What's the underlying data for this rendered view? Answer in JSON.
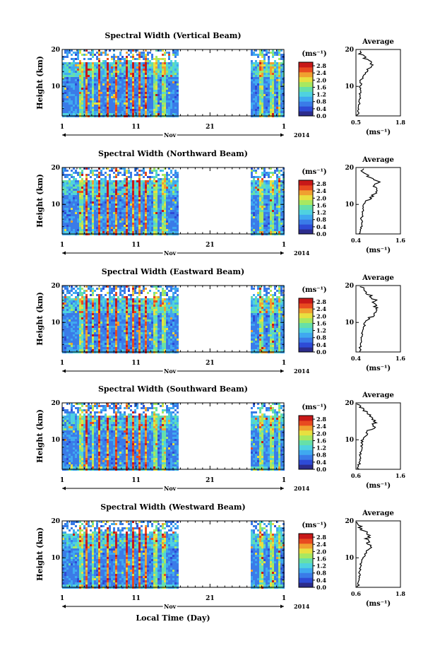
{
  "page": {
    "xaxis_label": "Local Time (Day)"
  },
  "shared": {
    "x_ticks": [
      "1",
      "11",
      "21",
      "1"
    ],
    "month_label": "Nov",
    "year_label": "2014",
    "y_ticks": [
      "20",
      "10"
    ],
    "ylabel": "Height (km)",
    "colorbar_unit": "(ms⁻¹)",
    "colorbar_ticks": [
      "0.0",
      "0.4",
      "0.8",
      "1.2",
      "1.6",
      "2.0",
      "2.4",
      "2.8"
    ],
    "colorbar_colors": [
      "#2c2c8c",
      "#2e4bd6",
      "#3a7be8",
      "#3fa9f0",
      "#4fd2e0",
      "#66e0a8",
      "#a8e860",
      "#e8e040",
      "#f0a030",
      "#e84a20",
      "#c81818"
    ],
    "avg_title": "Average",
    "avg_xlabel": "(ms⁻¹)",
    "no_data_gap_days": [
      16.5,
      26.5
    ]
  },
  "chart_data": [
    {
      "type": "heatmap",
      "title": "Spectral Width (Vertical Beam)",
      "xlim_days": [
        1,
        31
      ],
      "ylim_km": [
        2,
        20
      ],
      "average_profile": {
        "title": "Average",
        "xlim": [
          0.5,
          1.8
        ],
        "x_ticks": [
          "0.5",
          "1.8"
        ],
        "y_ticks": [
          "20",
          "10"
        ],
        "heights_km": [
          2,
          4,
          6,
          8,
          10,
          11,
          12,
          13,
          14,
          15,
          16,
          17,
          18,
          19,
          20
        ],
        "values": [
          0.55,
          0.58,
          0.6,
          0.62,
          0.62,
          0.65,
          0.68,
          0.75,
          0.82,
          0.9,
          0.98,
          0.85,
          0.72,
          0.62,
          0.58
        ]
      }
    },
    {
      "type": "heatmap",
      "title": "Spectral Width (Northward Beam)",
      "xlim_days": [
        1,
        31
      ],
      "ylim_km": [
        2,
        20
      ],
      "average_profile": {
        "title": "Average",
        "xlim": [
          0.4,
          1.6
        ],
        "x_ticks": [
          "0.4",
          "1.6"
        ],
        "y_ticks": [
          "20",
          "10"
        ],
        "heights_km": [
          2,
          4,
          6,
          8,
          10,
          11,
          12,
          13,
          14,
          15,
          16,
          17,
          18,
          19,
          20
        ],
        "values": [
          0.5,
          0.55,
          0.55,
          0.58,
          0.62,
          0.7,
          0.8,
          0.9,
          0.95,
          0.9,
          1.0,
          0.85,
          0.7,
          0.6,
          0.55
        ]
      }
    },
    {
      "type": "heatmap",
      "title": "Spectral Width (Eastward Beam)",
      "xlim_days": [
        1,
        31
      ],
      "ylim_km": [
        2,
        20
      ],
      "average_profile": {
        "title": "Average",
        "xlim": [
          0.4,
          1.6
        ],
        "x_ticks": [
          "0.4",
          "1.6"
        ],
        "y_ticks": [
          "20",
          "10"
        ],
        "heights_km": [
          2,
          4,
          6,
          8,
          10,
          11,
          12,
          13,
          14,
          15,
          16,
          17,
          18,
          19,
          20
        ],
        "values": [
          0.5,
          0.52,
          0.55,
          0.6,
          0.65,
          0.75,
          0.85,
          0.9,
          0.95,
          0.88,
          0.92,
          0.8,
          0.7,
          0.6,
          0.55
        ]
      }
    },
    {
      "type": "heatmap",
      "title": "Spectral Width (Southward Beam)",
      "xlim_days": [
        1,
        31
      ],
      "ylim_km": [
        2,
        20
      ],
      "average_profile": {
        "title": "Average",
        "xlim": [
          0.6,
          1.6
        ],
        "x_ticks": [
          "0.6",
          "1.6"
        ],
        "y_ticks": [
          "20",
          "10"
        ],
        "heights_km": [
          2,
          4,
          6,
          8,
          10,
          11,
          12,
          13,
          14,
          15,
          16,
          17,
          18,
          19,
          20
        ],
        "values": [
          0.65,
          0.68,
          0.7,
          0.72,
          0.75,
          0.8,
          0.88,
          0.95,
          1.02,
          1.05,
          0.95,
          0.85,
          0.75,
          0.68,
          0.65
        ]
      }
    },
    {
      "type": "heatmap",
      "title": "Spectral Width (Westward Beam)",
      "xlim_days": [
        1,
        31
      ],
      "ylim_km": [
        2,
        20
      ],
      "average_profile": {
        "title": "Average",
        "xlim": [
          0.6,
          1.8
        ],
        "x_ticks": [
          "0.6",
          "1.8"
        ],
        "y_ticks": [
          "20",
          "10"
        ],
        "heights_km": [
          2,
          4,
          6,
          8,
          10,
          11,
          12,
          13,
          14,
          15,
          16,
          17,
          18,
          19,
          20
        ],
        "values": [
          0.65,
          0.68,
          0.7,
          0.72,
          0.78,
          0.85,
          0.95,
          1.0,
          0.92,
          0.88,
          1.0,
          0.85,
          0.72,
          0.68,
          0.65
        ]
      }
    }
  ]
}
